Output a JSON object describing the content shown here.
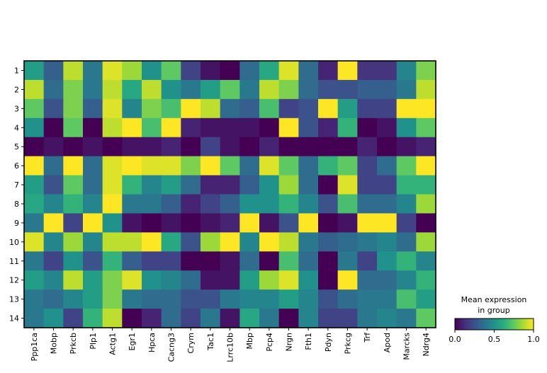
{
  "chart_data": {
    "type": "heatmap",
    "title": "",
    "xlabel": "",
    "ylabel": "",
    "x": [
      "Ppp1ca",
      "Mobp",
      "Prkcb",
      "Plp1",
      "Actg1",
      "Egr1",
      "Hpca",
      "Cacng3",
      "Crym",
      "Tac1",
      "Lrrc10b",
      "Mbp",
      "Pcp4",
      "Nrgn",
      "Fth1",
      "Pdyn",
      "Prkcg",
      "Trf",
      "Apod",
      "Marcks",
      "Ndrg4"
    ],
    "y": [
      "1",
      "2",
      "3",
      "4",
      "5",
      "6",
      "7",
      "8",
      "9",
      "10",
      "11",
      "12",
      "13",
      "14"
    ],
    "values": [
      [
        0.55,
        0.3,
        0.9,
        0.4,
        0.95,
        0.85,
        0.5,
        0.75,
        0.2,
        0.05,
        0.0,
        0.35,
        0.6,
        0.95,
        0.35,
        0.1,
        1.0,
        0.15,
        0.15,
        0.45,
        0.8
      ],
      [
        0.9,
        0.35,
        0.8,
        0.4,
        0.9,
        0.6,
        0.9,
        0.5,
        0.4,
        0.55,
        0.75,
        0.4,
        0.9,
        0.8,
        0.35,
        0.25,
        0.25,
        0.3,
        0.3,
        0.4,
        0.9
      ],
      [
        0.75,
        0.25,
        0.8,
        0.3,
        0.95,
        0.45,
        0.8,
        0.7,
        1.0,
        0.9,
        0.35,
        0.3,
        0.7,
        0.2,
        0.25,
        1.0,
        0.55,
        0.2,
        0.2,
        1.0,
        1.0
      ],
      [
        0.5,
        0.0,
        0.75,
        0.0,
        0.9,
        1.0,
        0.7,
        1.0,
        0.1,
        0.05,
        0.05,
        0.05,
        0.0,
        1.0,
        0.25,
        0.1,
        0.65,
        0.0,
        0.05,
        0.5,
        0.75
      ],
      [
        0.0,
        0.05,
        0.0,
        0.05,
        0.0,
        0.05,
        0.05,
        0.1,
        0.0,
        0.2,
        0.05,
        0.0,
        0.1,
        0.0,
        0.0,
        0.0,
        0.0,
        0.1,
        0.0,
        0.05,
        0.1
      ],
      [
        1.0,
        0.35,
        1.0,
        0.35,
        0.95,
        1.0,
        0.95,
        0.95,
        0.8,
        1.0,
        0.75,
        0.35,
        0.95,
        0.75,
        0.35,
        0.65,
        0.75,
        0.2,
        0.35,
        0.75,
        1.0
      ],
      [
        0.55,
        0.25,
        0.75,
        0.35,
        0.95,
        0.65,
        0.45,
        0.55,
        0.35,
        0.1,
        0.1,
        0.3,
        0.5,
        0.85,
        0.35,
        0.0,
        0.95,
        0.2,
        0.2,
        0.65,
        0.65
      ],
      [
        0.6,
        0.45,
        0.65,
        0.45,
        1.0,
        0.4,
        0.4,
        0.3,
        0.1,
        0.2,
        0.3,
        0.5,
        0.5,
        0.65,
        0.45,
        0.25,
        0.7,
        0.35,
        0.35,
        0.45,
        0.85
      ],
      [
        0.4,
        1.0,
        0.2,
        1.0,
        0.5,
        0.05,
        0.0,
        0.05,
        0.0,
        0.05,
        0.1,
        1.0,
        0.05,
        0.25,
        1.0,
        0.0,
        0.05,
        1.0,
        1.0,
        0.2,
        0.0
      ],
      [
        0.95,
        0.45,
        0.85,
        0.45,
        0.9,
        0.9,
        1.0,
        0.6,
        0.25,
        0.85,
        1.0,
        0.45,
        1.0,
        0.9,
        0.4,
        0.3,
        0.35,
        0.4,
        0.45,
        0.35,
        0.85
      ],
      [
        0.4,
        0.2,
        0.5,
        0.25,
        0.65,
        0.3,
        0.2,
        0.2,
        0.0,
        0.0,
        0.05,
        0.35,
        0.0,
        0.7,
        0.35,
        0.0,
        0.4,
        0.2,
        0.5,
        0.65,
        0.45
      ],
      [
        0.55,
        0.45,
        0.9,
        0.55,
        0.8,
        0.95,
        0.5,
        0.45,
        0.35,
        0.05,
        0.05,
        0.55,
        0.85,
        0.95,
        0.5,
        0.0,
        1.0,
        0.35,
        0.35,
        0.45,
        0.65
      ],
      [
        0.4,
        0.35,
        0.45,
        0.55,
        0.8,
        0.4,
        0.35,
        0.35,
        0.25,
        0.25,
        0.4,
        0.45,
        0.45,
        0.55,
        0.45,
        0.25,
        0.35,
        0.4,
        0.4,
        0.7,
        0.55
      ],
      [
        0.4,
        0.5,
        0.2,
        0.65,
        0.9,
        0.0,
        0.1,
        0.35,
        0.2,
        0.4,
        0.05,
        0.6,
        0.4,
        0.0,
        0.45,
        0.2,
        0.2,
        0.4,
        0.45,
        0.4,
        0.75
      ]
    ],
    "colormap": "viridis",
    "vmin": 0.0,
    "vmax": 1.0,
    "colorbar": {
      "title_line1": "Mean expression",
      "title_line2": "in group",
      "ticks": [
        "0.0",
        "0.5",
        "1.0"
      ]
    }
  }
}
